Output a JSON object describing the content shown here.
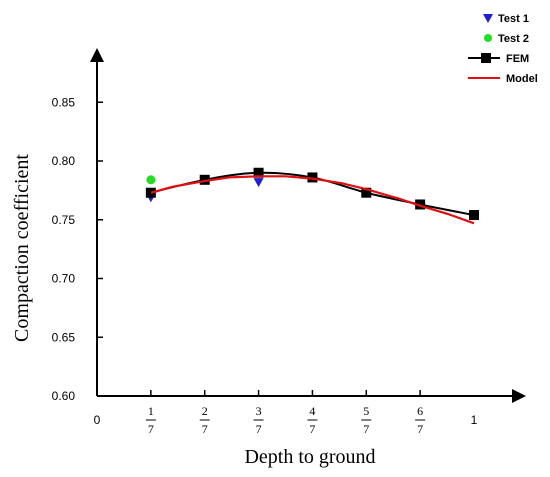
{
  "chart_data": {
    "type": "line",
    "xlabel": "Depth to ground",
    "ylabel": "Compaction coefficient",
    "xlim": [
      0,
      1.07
    ],
    "ylim": [
      0.6,
      0.87
    ],
    "x_ticks": [
      {
        "value": 0,
        "num": "0",
        "den": ""
      },
      {
        "value": 0.142857,
        "num": "1",
        "den": "7"
      },
      {
        "value": 0.285714,
        "num": "2",
        "den": "7"
      },
      {
        "value": 0.428571,
        "num": "3",
        "den": "7"
      },
      {
        "value": 0.571429,
        "num": "4",
        "den": "7"
      },
      {
        "value": 0.714286,
        "num": "5",
        "den": "7"
      },
      {
        "value": 0.857143,
        "num": "6",
        "den": "7"
      },
      {
        "value": 1,
        "num": "1",
        "den": ""
      }
    ],
    "y_ticks": [
      {
        "value": 0.6,
        "label": "0.60"
      },
      {
        "value": 0.65,
        "label": "0.65"
      },
      {
        "value": 0.7,
        "label": "0.70"
      },
      {
        "value": 0.75,
        "label": "0.75"
      },
      {
        "value": 0.8,
        "label": "0.80"
      },
      {
        "value": 0.85,
        "label": "0.85"
      }
    ],
    "series": [
      {
        "name": "Test 1",
        "kind": "marker-triangle-down",
        "color": "#1f1fd0",
        "x": [
          0.142857,
          0.428571
        ],
        "y": [
          0.769,
          0.782
        ]
      },
      {
        "name": "Test 2",
        "kind": "marker-circle",
        "color": "#22dd22",
        "x": [
          0.142857
        ],
        "y": [
          0.784
        ]
      },
      {
        "name": "FEM",
        "kind": "line-square",
        "color": "#000000",
        "x": [
          0.142857,
          0.285714,
          0.428571,
          0.571429,
          0.714286,
          0.857143,
          1.0
        ],
        "y": [
          0.773,
          0.784,
          0.79,
          0.786,
          0.773,
          0.763,
          0.754
        ]
      },
      {
        "name": "Model",
        "kind": "line",
        "color": "#e01010",
        "x": [
          0.142857,
          0.2,
          0.285714,
          0.35,
          0.428571,
          0.5,
          0.571429,
          0.65,
          0.714286,
          0.8,
          0.857143,
          0.93,
          1.0
        ],
        "y": [
          0.773,
          0.778,
          0.783,
          0.786,
          0.787,
          0.787,
          0.785,
          0.781,
          0.776,
          0.768,
          0.762,
          0.755,
          0.747
        ]
      }
    ]
  },
  "legend": {
    "items": [
      {
        "label": "Test 1",
        "symbol": "triangle-down",
        "color": "#1f1fd0"
      },
      {
        "label": "Test 2",
        "symbol": "circle",
        "color": "#22dd22"
      },
      {
        "label": "FEM",
        "symbol": "line-square",
        "color": "#000000"
      },
      {
        "label": "Model",
        "symbol": "line",
        "color": "#e01010"
      }
    ]
  }
}
